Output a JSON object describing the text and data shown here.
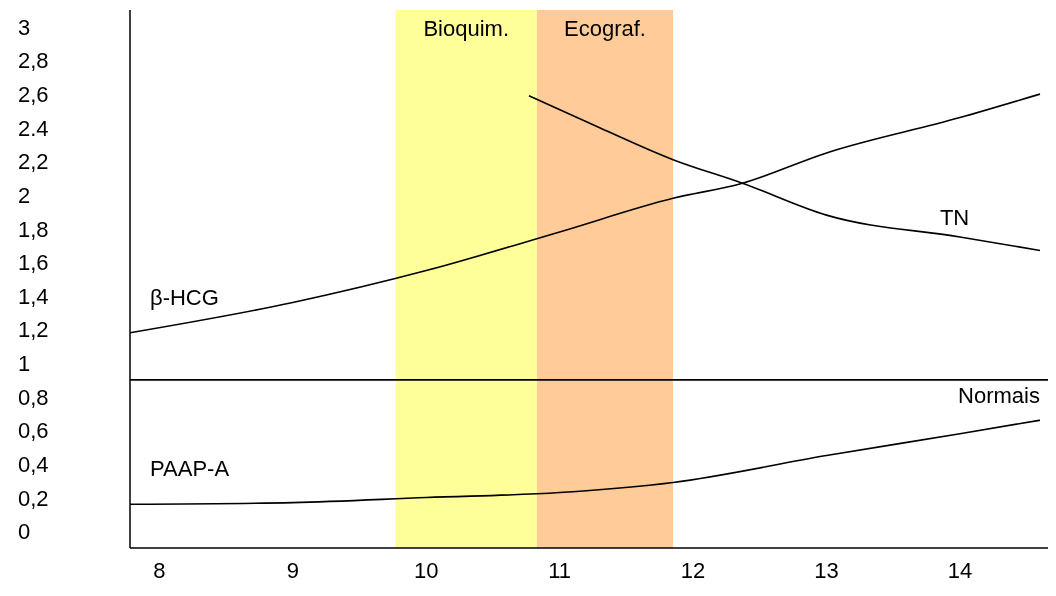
{
  "chart_data": {
    "type": "line",
    "series": [
      {
        "name": "β-HCG",
        "color": "#000000",
        "x": [
          7.78,
          9,
          10,
          11,
          11.85,
          12.37,
          13,
          14,
          14.6
        ],
        "values": [
          1.18,
          1.36,
          1.55,
          1.78,
          1.98,
          2.07,
          2.25,
          2.46,
          2.6
        ]
      },
      {
        "name": "TN",
        "color": "#000000",
        "x": [
          10.77,
          11.3,
          11.85,
          12.37,
          13,
          14,
          14.6
        ],
        "values": [
          2.59,
          2.4,
          2.21,
          2.07,
          1.88,
          1.75,
          1.67
        ]
      },
      {
        "name": "PAAP-A",
        "color": "#000000",
        "x": [
          7.78,
          9,
          10,
          11,
          11.85,
          13,
          14,
          14.6
        ],
        "values": [
          0.16,
          0.17,
          0.2,
          0.23,
          0.29,
          0.45,
          0.58,
          0.66
        ]
      }
    ],
    "xlim": [
      7.78,
      14.66
    ],
    "xticks": [
      8,
      9,
      10,
      11,
      12,
      13,
      14
    ],
    "ylim": [
      -0.1,
      3.1
    ],
    "yticks": [
      0,
      {
        "value": 0.2,
        "label": "0,2"
      },
      {
        "value": 0.4,
        "label": "0,4"
      },
      {
        "value": 0.6,
        "label": "0,6"
      },
      {
        "value": 0.8,
        "label": "0,8"
      },
      1,
      {
        "value": 1.2,
        "label": "1,2"
      },
      {
        "value": 1.4,
        "label": "1,4"
      },
      {
        "value": 1.6,
        "label": "1,6"
      },
      {
        "value": 1.8,
        "label": "1,8"
      },
      2,
      {
        "value": 2.2,
        "label": "2,2"
      },
      2.4,
      {
        "value": 2.6,
        "label": "2,6"
      },
      {
        "value": 2.8,
        "label": "2,8"
      },
      3
    ],
    "ref_lines": [
      {
        "axis": "y",
        "value": 0.9,
        "label": "Normais",
        "color": "#000000"
      }
    ],
    "bands": [
      {
        "axis": "x",
        "from": 9.77,
        "to": 10.83,
        "label": "Bioquim.",
        "color": "#ffff99"
      },
      {
        "axis": "x",
        "from": 10.83,
        "to": 11.85,
        "label": "Ecograf.",
        "color": "#ffcc99"
      }
    ],
    "grid": false,
    "legend": false,
    "marker": "none",
    "line_style": "solid"
  }
}
